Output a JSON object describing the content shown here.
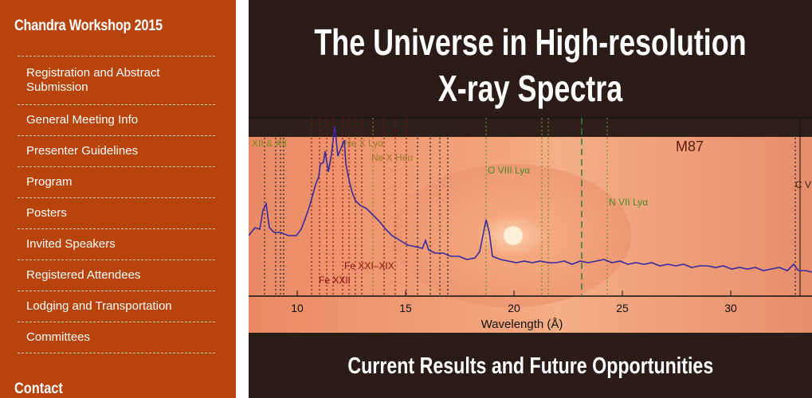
{
  "sidebar": {
    "site_title": "Chandra Workshop 2015",
    "nav_items": [
      {
        "label": "Registration and Abstract Submission"
      },
      {
        "label": "General Meeting Info"
      },
      {
        "label": "Presenter Guidelines"
      },
      {
        "label": "Program"
      },
      {
        "label": "Posters"
      },
      {
        "label": "Invited Speakers"
      },
      {
        "label": "Registered Attendees"
      },
      {
        "label": "Lodging and Transportation"
      },
      {
        "label": "Committees"
      }
    ],
    "contact_heading": "Contact"
  },
  "banner": {
    "title": "The Universe in High-resolution X-ray Spectra",
    "subtitle": "Current Results and Future Opportunities",
    "spectrum": {
      "object_label": "M87",
      "x_axis_label": "Wavelength (Å)",
      "x_ticks": [
        "10",
        "15",
        "20",
        "25",
        "30"
      ],
      "line_labels": [
        "XII & XII",
        "Ne X Lyα",
        "Ne X Heα",
        "O VIII Lyα",
        "N VII Lyα",
        "C V",
        "Fe XXI–XIX",
        "Fe XXII"
      ]
    },
    "colors": {
      "sidebar_bg": "#b8440b",
      "banner_bg": "#2b1c17",
      "spectrum_line": "#3a2aa0"
    }
  }
}
